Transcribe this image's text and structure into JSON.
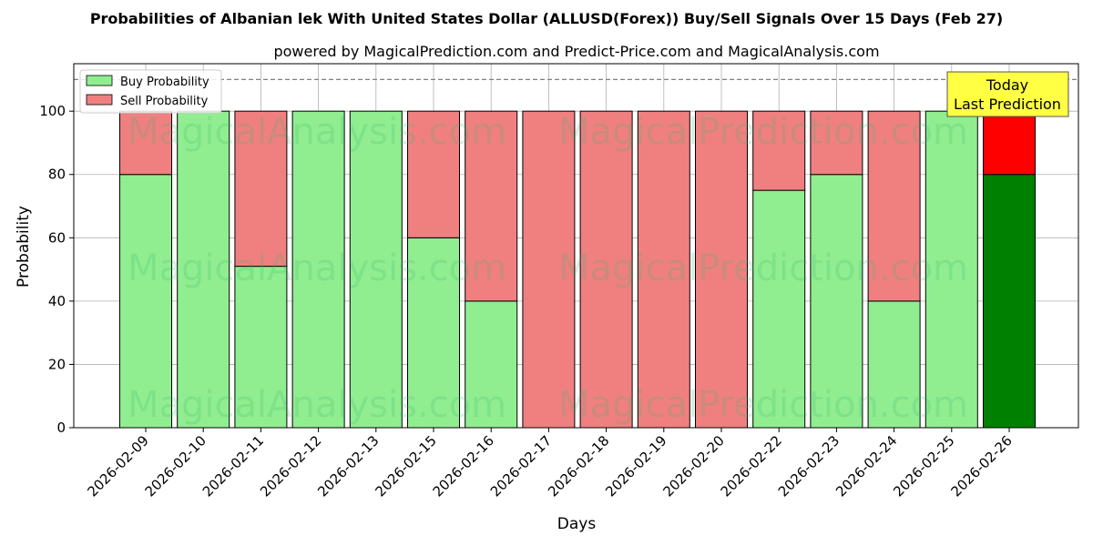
{
  "chart_data": {
    "type": "bar",
    "stacked": true,
    "title": "Probabilities of Albanian lek With United States Dollar (ALLUSD(Forex)) Buy/Sell Signals Over 15 Days (Feb 27)",
    "subtitle": "powered by MagicalPrediction.com and Predict-Price.com and MagicalAnalysis.com",
    "xlabel": "Days",
    "ylabel": "Probability",
    "ylim": [
      0,
      115
    ],
    "yticks": [
      0,
      20,
      40,
      60,
      80,
      100
    ],
    "reference_line": 110,
    "grid": true,
    "legend_position": "top-left",
    "categories": [
      "2026-02-09",
      "2026-02-10",
      "2026-02-11",
      "2026-02-12",
      "2026-02-13",
      "2026-02-15",
      "2026-02-16",
      "2026-02-17",
      "2026-02-18",
      "2026-02-19",
      "2026-02-20",
      "2026-02-22",
      "2026-02-23",
      "2026-02-24",
      "2026-02-25",
      "2026-02-26"
    ],
    "series": [
      {
        "name": "Buy Probability",
        "color": "#90ee90",
        "values": [
          80,
          100,
          51,
          100,
          100,
          60,
          40,
          0,
          0,
          0,
          0,
          75,
          80,
          40,
          100,
          80
        ]
      },
      {
        "name": "Sell Probability",
        "color": "#f08080",
        "values": [
          20,
          0,
          49,
          0,
          0,
          40,
          60,
          100,
          100,
          100,
          100,
          25,
          20,
          60,
          0,
          20
        ]
      }
    ],
    "highlight": {
      "index": 15,
      "buy_color": "#008000",
      "sell_color": "#ff0000"
    },
    "annotation": {
      "line1": "Today",
      "line2": "Last Prediction",
      "color": "#ffff44"
    },
    "watermarks": [
      "MagicalAnalysis.com",
      "MagicalPrediction.com"
    ]
  }
}
